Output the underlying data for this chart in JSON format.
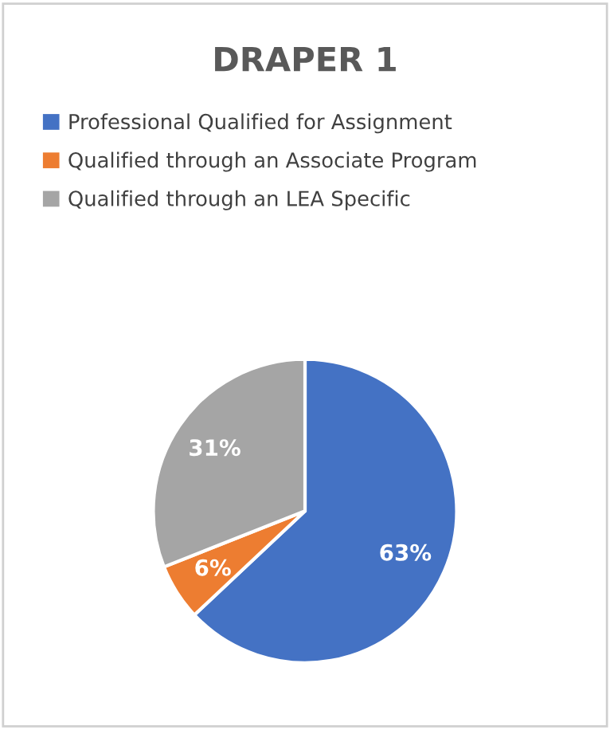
{
  "chart_data": {
    "type": "pie",
    "title": "DRAPER 1",
    "categories": [
      "Professional Qualified for Assignment",
      "Qualified through an Associate Program",
      "Qualified through an LEA Specific"
    ],
    "values": [
      63,
      6,
      31
    ],
    "colors": [
      "#4472c4",
      "#ed7d31",
      "#a5a5a5"
    ],
    "value_labels": [
      "63%",
      "6%",
      "31%"
    ],
    "legend": "top"
  }
}
